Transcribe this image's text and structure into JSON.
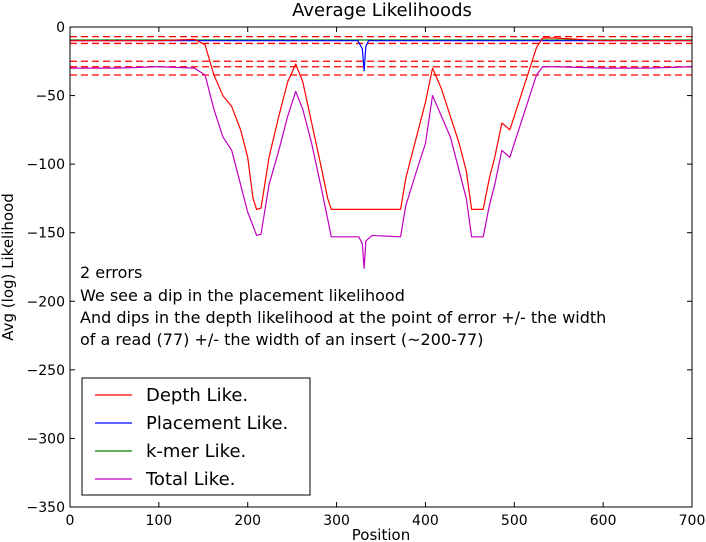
{
  "chart_data": {
    "type": "line",
    "title": "Average Likelihoods",
    "xlabel": "Position",
    "ylabel": "Avg (log) Likelihood",
    "xlim": [
      0,
      700
    ],
    "ylim": [
      -350,
      0
    ],
    "xticks": [
      0,
      100,
      200,
      300,
      400,
      500,
      600,
      700
    ],
    "yticks": [
      0,
      -50,
      -100,
      -150,
      -200,
      -250,
      -300,
      -350
    ],
    "xtick_labels": [
      "0",
      "100",
      "200",
      "300",
      "400",
      "500",
      "600",
      "700"
    ],
    "ytick_labels": [
      "0",
      "−50",
      "−100",
      "−150",
      "−200",
      "−250",
      "−300",
      "−350"
    ],
    "grid": false,
    "legend_position": "lower-left",
    "annotation": [
      "2 errors",
      "We see a dip in the placement likelihood",
      "And dips in the depth likelihood at the point of error +/- the width",
      "of a read (77) +/- the width of an insert (~200-77)"
    ],
    "hlines": {
      "color": "#ff0000",
      "style": "dashed",
      "y": [
        -7,
        -12,
        -25,
        -29,
        -35
      ]
    },
    "series": [
      {
        "name": "Depth Like.",
        "color": "#ff0000",
        "points": [
          [
            0,
            -10
          ],
          [
            50,
            -10
          ],
          [
            100,
            -10
          ],
          [
            140,
            -9
          ],
          [
            152,
            -13
          ],
          [
            162,
            -35
          ],
          [
            172,
            -50
          ],
          [
            182,
            -58
          ],
          [
            192,
            -75
          ],
          [
            200,
            -95
          ],
          [
            206,
            -125
          ],
          [
            210,
            -133
          ],
          [
            215,
            -132
          ],
          [
            224,
            -95
          ],
          [
            235,
            -65
          ],
          [
            245,
            -40
          ],
          [
            254,
            -27
          ],
          [
            262,
            -40
          ],
          [
            272,
            -70
          ],
          [
            282,
            -100
          ],
          [
            290,
            -125
          ],
          [
            294,
            -133
          ],
          [
            330,
            -133
          ],
          [
            372,
            -133
          ],
          [
            378,
            -110
          ],
          [
            390,
            -80
          ],
          [
            400,
            -55
          ],
          [
            408,
            -30
          ],
          [
            418,
            -45
          ],
          [
            428,
            -65
          ],
          [
            438,
            -85
          ],
          [
            446,
            -105
          ],
          [
            452,
            -133
          ],
          [
            465,
            -133
          ],
          [
            472,
            -110
          ],
          [
            478,
            -95
          ],
          [
            486,
            -70
          ],
          [
            495,
            -75
          ],
          [
            505,
            -55
          ],
          [
            515,
            -35
          ],
          [
            525,
            -15
          ],
          [
            532,
            -8
          ],
          [
            545,
            -8
          ],
          [
            600,
            -10
          ],
          [
            650,
            -10
          ],
          [
            700,
            -10
          ]
        ]
      },
      {
        "name": "Placement Like.",
        "color": "#0000ff",
        "points": [
          [
            0,
            -10
          ],
          [
            100,
            -10
          ],
          [
            200,
            -10
          ],
          [
            300,
            -10
          ],
          [
            324,
            -10
          ],
          [
            329,
            -16
          ],
          [
            331,
            -32
          ],
          [
            333,
            -14
          ],
          [
            336,
            -10
          ],
          [
            400,
            -10
          ],
          [
            500,
            -10
          ],
          [
            600,
            -10
          ],
          [
            700,
            -10
          ]
        ]
      },
      {
        "name": "k-mer Like.",
        "color": "#008000",
        "points": [
          [
            0,
            -9.5
          ],
          [
            100,
            -9.5
          ],
          [
            200,
            -9.5
          ],
          [
            300,
            -9.5
          ],
          [
            400,
            -9.5
          ],
          [
            500,
            -9.5
          ],
          [
            600,
            -9.5
          ],
          [
            700,
            -9.5
          ]
        ]
      },
      {
        "name": "Total Like.",
        "color": "#bf00bf",
        "points": [
          [
            0,
            -30
          ],
          [
            50,
            -30
          ],
          [
            100,
            -29
          ],
          [
            140,
            -30
          ],
          [
            152,
            -35
          ],
          [
            162,
            -60
          ],
          [
            172,
            -80
          ],
          [
            182,
            -90
          ],
          [
            192,
            -115
          ],
          [
            200,
            -135
          ],
          [
            206,
            -145
          ],
          [
            210,
            -152
          ],
          [
            215,
            -151
          ],
          [
            224,
            -115
          ],
          [
            235,
            -90
          ],
          [
            245,
            -65
          ],
          [
            254,
            -47
          ],
          [
            262,
            -60
          ],
          [
            272,
            -85
          ],
          [
            282,
            -115
          ],
          [
            290,
            -140
          ],
          [
            294,
            -153
          ],
          [
            325,
            -153
          ],
          [
            329,
            -158
          ],
          [
            331,
            -176
          ],
          [
            333,
            -156
          ],
          [
            340,
            -152
          ],
          [
            372,
            -153
          ],
          [
            378,
            -130
          ],
          [
            390,
            -105
          ],
          [
            400,
            -85
          ],
          [
            408,
            -50
          ],
          [
            418,
            -65
          ],
          [
            428,
            -80
          ],
          [
            438,
            -105
          ],
          [
            446,
            -125
          ],
          [
            452,
            -153
          ],
          [
            465,
            -153
          ],
          [
            472,
            -130
          ],
          [
            478,
            -115
          ],
          [
            486,
            -90
          ],
          [
            495,
            -95
          ],
          [
            505,
            -75
          ],
          [
            515,
            -55
          ],
          [
            525,
            -35
          ],
          [
            532,
            -29
          ],
          [
            545,
            -29
          ],
          [
            600,
            -30
          ],
          [
            650,
            -30
          ],
          [
            700,
            -29
          ]
        ]
      }
    ]
  }
}
